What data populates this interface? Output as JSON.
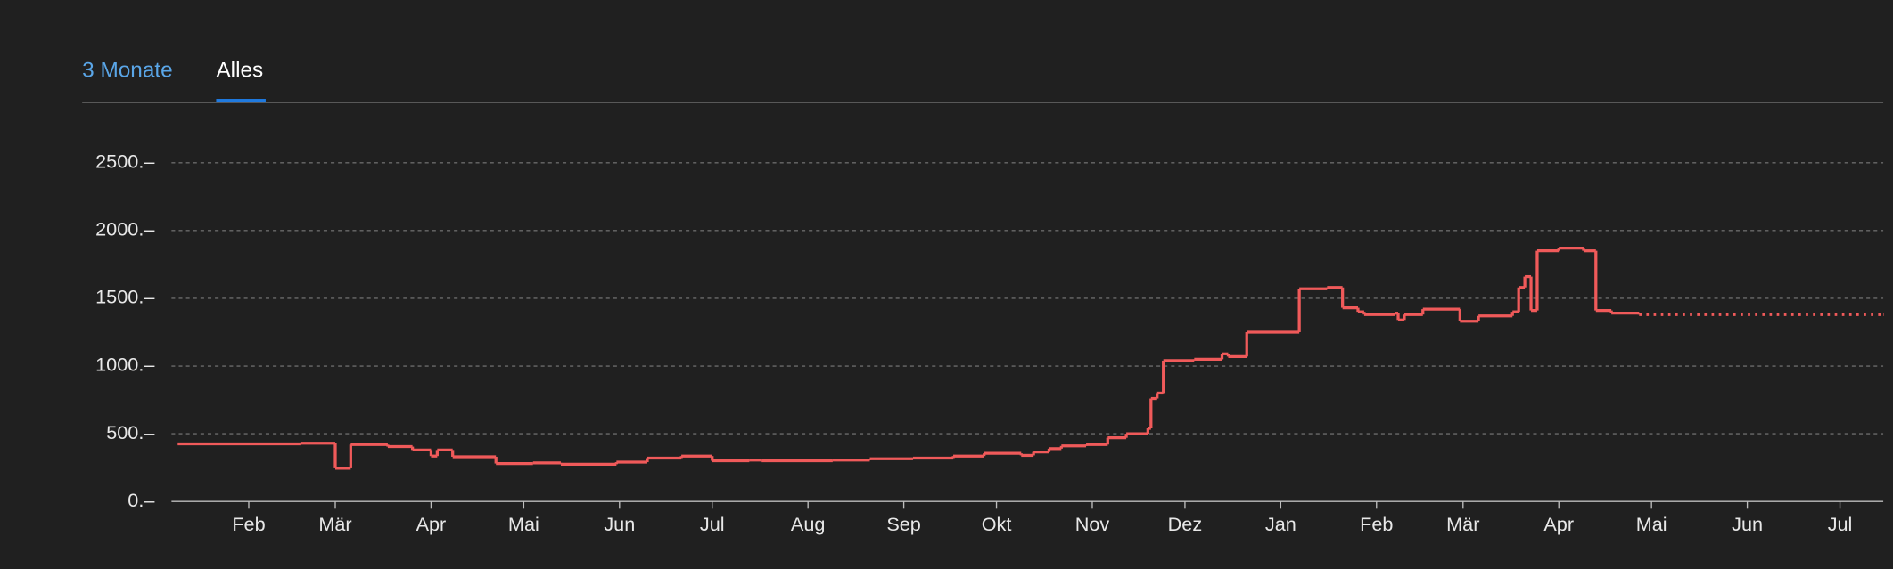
{
  "tabs": [
    "3 Monate",
    "Alles"
  ],
  "chart_data": {
    "type": "line",
    "step": true,
    "xlim": [
      6,
      560
    ],
    "ylim": [
      0,
      2500
    ],
    "yticks": [
      {
        "value": 0,
        "label": "0.–"
      },
      {
        "value": 500,
        "label": "500.–"
      },
      {
        "value": 1000,
        "label": "1000.–"
      },
      {
        "value": 1500,
        "label": "1500.–"
      },
      {
        "value": 2000,
        "label": "2000.–"
      },
      {
        "value": 2500,
        "label": "2500.–"
      }
    ],
    "xticks": [
      {
        "value": 31,
        "label": "Feb"
      },
      {
        "value": 59,
        "label": "Mär"
      },
      {
        "value": 90,
        "label": "Apr"
      },
      {
        "value": 120,
        "label": "Mai"
      },
      {
        "value": 151,
        "label": "Jun"
      },
      {
        "value": 181,
        "label": "Jul"
      },
      {
        "value": 212,
        "label": "Aug"
      },
      {
        "value": 243,
        "label": "Sep"
      },
      {
        "value": 273,
        "label": "Okt"
      },
      {
        "value": 304,
        "label": "Nov"
      },
      {
        "value": 334,
        "label": "Dez"
      },
      {
        "value": 365,
        "label": "Jan"
      },
      {
        "value": 396,
        "label": "Feb"
      },
      {
        "value": 424,
        "label": "Mär"
      },
      {
        "value": 455,
        "label": "Apr"
      },
      {
        "value": 485,
        "label": "Mai"
      },
      {
        "value": 516,
        "label": "Jun"
      },
      {
        "value": 546,
        "label": "Jul"
      }
    ],
    "grid": true,
    "series": [
      {
        "color": "#f05a5a",
        "style": "solid",
        "x": [
          8,
          48,
          59,
          64,
          76,
          84,
          90,
          92,
          97,
          111,
          123,
          132,
          150,
          160,
          171,
          181,
          193,
          197,
          220,
          232,
          246,
          259,
          269,
          281,
          285,
          290,
          294,
          302,
          309,
          315,
          322,
          323,
          325,
          327,
          337,
          346,
          348,
          354,
          371,
          380,
          385,
          390,
          392,
          402,
          403,
          405,
          411,
          423,
          429,
          440,
          442,
          444,
          446,
          448,
          455,
          463,
          467,
          472,
          481
        ],
        "values": [
          425,
          430,
          245,
          420,
          405,
          380,
          335,
          380,
          330,
          280,
          285,
          275,
          290,
          320,
          335,
          300,
          305,
          300,
          305,
          315,
          320,
          335,
          355,
          340,
          365,
          390,
          410,
          420,
          470,
          500,
          540,
          760,
          800,
          1040,
          1050,
          1090,
          1070,
          1250,
          1570,
          1580,
          1430,
          1400,
          1380,
          1390,
          1340,
          1380,
          1420,
          1330,
          1370,
          1400,
          1580,
          1660,
          1410,
          1850,
          1870,
          1850,
          1410,
          1390,
          1380
        ]
      },
      {
        "color": "#f05a5a",
        "style": "dotted",
        "x": [
          481,
          560
        ],
        "values": [
          1380,
          1380
        ]
      }
    ]
  }
}
